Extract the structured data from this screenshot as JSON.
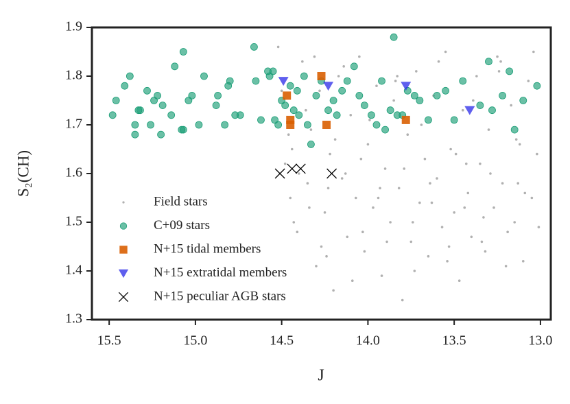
{
  "chart_data": {
    "type": "scatter",
    "xlabel": "J",
    "ylabel": "S₂(CH)",
    "xlim": [
      15.6,
      12.94
    ],
    "ylim": [
      1.3,
      1.9
    ],
    "xticks": [
      15.5,
      {
        "value": 15,
        "label": "15.0"
      },
      14.5,
      {
        "value": 14,
        "label": "14.0"
      },
      13.5,
      {
        "value": 13,
        "label": "13.0"
      }
    ],
    "yticks": [
      1.3,
      1.4,
      1.5,
      1.6,
      1.7,
      1.8,
      1.9
    ],
    "legend": "lower left",
    "series": [
      {
        "name": "Field stars",
        "color": "#b0b0b0",
        "marker": "point",
        "x": [
          14.52,
          14.48,
          14.45,
          14.41,
          14.38,
          14.35,
          14.33,
          14.3,
          14.28,
          14.25,
          14.22,
          14.2,
          14.17,
          14.15,
          14.12,
          14.1,
          14.07,
          14.05,
          14.02,
          14.0,
          13.97,
          13.95,
          13.92,
          13.9,
          13.87,
          13.85,
          13.82,
          13.8,
          13.77,
          13.75,
          13.72,
          13.7,
          13.67,
          13.65,
          13.62,
          13.6,
          13.57,
          13.55,
          13.52,
          13.5,
          13.47,
          13.45,
          13.42,
          13.4,
          13.37,
          13.35,
          13.32,
          13.3,
          13.27,
          13.25,
          13.22,
          13.2,
          13.17,
          13.15,
          13.12,
          13.1,
          13.07,
          13.05,
          13.02,
          13.01,
          14.5,
          14.46,
          14.43,
          14.4,
          14.36,
          14.31,
          14.27,
          14.23,
          14.19,
          14.14,
          14.09,
          14.04,
          13.99,
          13.94,
          13.89,
          13.84,
          13.79,
          13.74,
          13.69,
          13.64,
          13.59,
          13.54,
          13.49,
          13.44,
          13.39,
          13.34,
          13.29,
          13.24,
          13.19,
          13.14,
          13.09,
          13.04,
          14.44,
          14.34,
          14.24,
          14.13,
          14.03,
          13.93,
          13.83,
          13.73,
          13.63,
          13.53,
          13.43,
          13.33,
          13.23,
          13.13
        ],
        "y": [
          1.86,
          1.62,
          1.55,
          1.48,
          1.83,
          1.58,
          1.69,
          1.41,
          1.77,
          1.52,
          1.64,
          1.36,
          1.8,
          1.59,
          1.47,
          1.72,
          1.55,
          1.84,
          1.44,
          1.66,
          1.53,
          1.78,
          1.39,
          1.61,
          1.5,
          1.75,
          1.57,
          1.34,
          1.68,
          1.46,
          1.81,
          1.54,
          1.63,
          1.43,
          1.76,
          1.59,
          1.49,
          1.85,
          1.65,
          1.52,
          1.38,
          1.73,
          1.56,
          1.47,
          1.8,
          1.62,
          1.44,
          1.69,
          1.53,
          1.84,
          1.58,
          1.41,
          1.74,
          1.5,
          1.66,
          1.42,
          1.79,
          1.55,
          1.64,
          1.49,
          1.77,
          1.68,
          1.5,
          1.6,
          1.73,
          1.84,
          1.45,
          1.57,
          1.67,
          1.82,
          1.38,
          1.63,
          1.71,
          1.55,
          1.46,
          1.79,
          1.61,
          1.5,
          1.7,
          1.58,
          1.83,
          1.42,
          1.64,
          1.53,
          1.75,
          1.46,
          1.6,
          1.81,
          1.48,
          1.67,
          1.56,
          1.85,
          1.65,
          1.53,
          1.43,
          1.6,
          1.48,
          1.57,
          1.8,
          1.4,
          1.54,
          1.45,
          1.62,
          1.51,
          1.83,
          1.58
        ]
      },
      {
        "name": "C+09 stars",
        "color": "#1b9e77",
        "marker": "circle",
        "x": [
          15.48,
          15.46,
          15.41,
          15.38,
          15.35,
          15.35,
          15.33,
          15.32,
          15.28,
          15.26,
          15.24,
          15.22,
          15.2,
          15.19,
          15.14,
          15.12,
          15.08,
          15.07,
          15.07,
          15.04,
          15.02,
          14.98,
          14.95,
          14.88,
          14.87,
          14.83,
          14.81,
          14.8,
          14.77,
          14.74,
          14.66,
          14.65,
          14.62,
          14.58,
          14.57,
          14.55,
          14.54,
          14.52,
          14.5,
          14.48,
          14.45,
          14.43,
          14.41,
          14.4,
          14.37,
          14.35,
          14.33,
          14.3,
          14.27,
          14.23,
          14.2,
          14.18,
          14.15,
          14.12,
          14.08,
          14.05,
          14.02,
          13.98,
          13.95,
          13.92,
          13.9,
          13.87,
          13.85,
          13.83,
          13.8,
          13.77,
          13.73,
          13.7,
          13.65,
          13.6,
          13.55,
          13.5,
          13.45,
          13.35,
          13.3,
          13.28,
          13.22,
          13.18,
          13.15,
          13.1,
          13.02
        ],
        "y": [
          1.72,
          1.75,
          1.78,
          1.8,
          1.68,
          1.7,
          1.73,
          1.73,
          1.77,
          1.7,
          1.75,
          1.76,
          1.68,
          1.74,
          1.72,
          1.82,
          1.69,
          1.69,
          1.85,
          1.75,
          1.76,
          1.7,
          1.8,
          1.74,
          1.76,
          1.7,
          1.78,
          1.79,
          1.72,
          1.72,
          1.86,
          1.79,
          1.71,
          1.81,
          1.8,
          1.81,
          1.71,
          1.7,
          1.75,
          1.74,
          1.78,
          1.73,
          1.77,
          1.72,
          1.8,
          1.7,
          1.66,
          1.76,
          1.79,
          1.73,
          1.75,
          1.72,
          1.77,
          1.79,
          1.82,
          1.76,
          1.74,
          1.72,
          1.7,
          1.79,
          1.69,
          1.73,
          1.88,
          1.72,
          1.72,
          1.77,
          1.76,
          1.75,
          1.71,
          1.76,
          1.77,
          1.71,
          1.79,
          1.74,
          1.83,
          1.73,
          1.76,
          1.81,
          1.69,
          1.75,
          1.78
        ]
      },
      {
        "name": "N+15 tidal members",
        "color": "#d95f02",
        "marker": "square",
        "x": [
          14.47,
          14.45,
          14.45,
          14.27,
          14.24,
          13.78
        ],
        "y": [
          1.76,
          1.7,
          1.71,
          1.8,
          1.7,
          1.71
        ]
      },
      {
        "name": "N+15 extratidal members",
        "color": "#2a2ae8",
        "marker": "triangle-down",
        "x": [
          14.49,
          14.23,
          13.78,
          13.41
        ],
        "y": [
          1.79,
          1.78,
          1.78,
          1.73
        ]
      },
      {
        "name": "N+15 peculiar AGB stars",
        "color": "#000000",
        "marker": "x",
        "x": [
          14.51,
          14.44,
          14.39,
          14.21
        ],
        "y": [
          1.6,
          1.61,
          1.61,
          1.6
        ]
      }
    ]
  }
}
